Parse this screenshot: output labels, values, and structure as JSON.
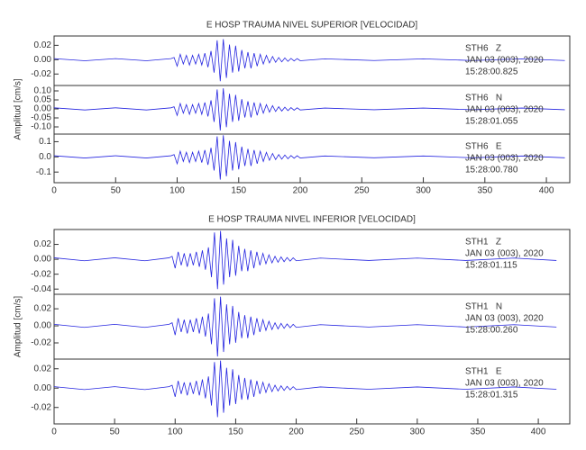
{
  "chart_data": [
    {
      "type": "line",
      "title": "E HOSP TRAUMA NIVEL SUPERIOR [VELOCIDAD]",
      "ylabel": "Amplitud [cm/s]",
      "xlim": [
        0,
        419
      ],
      "xticks": [
        0,
        50,
        100,
        150,
        200,
        250,
        300,
        350,
        400
      ],
      "x": [
        0,
        25,
        50,
        75,
        95,
        97.5,
        100,
        102.5,
        105,
        107.5,
        110,
        112.5,
        115,
        117.5,
        120,
        122.5,
        125,
        127.5,
        130,
        132.5,
        135,
        137.5,
        140,
        142.5,
        145,
        147.5,
        150,
        152.5,
        155,
        157.5,
        160,
        162.5,
        165,
        167.5,
        170,
        172.5,
        175,
        177.5,
        180,
        182.5,
        185,
        187.5,
        190,
        192.5,
        195,
        197.5,
        200,
        220,
        260,
        300,
        340,
        380,
        415
      ],
      "panels": [
        {
          "station": "STH6   Z",
          "date": "JAN 03 (003), 2020",
          "time": "15:28:00.825",
          "ylim": [
            -0.036,
            0.033
          ],
          "yticks": [
            0.02,
            {
              "value": 0,
              "label": "0.00"
            },
            -0.02
          ],
          "color": "#2424e0",
          "values": [
            0.0015,
            -0.0015,
            0.0015,
            -0.0015,
            0.0015,
            0.003,
            -0.009,
            0.0075,
            -0.006,
            0.006,
            -0.0075,
            0.006,
            -0.006,
            0.0075,
            -0.0075,
            0.009,
            -0.0105,
            0.012,
            -0.018,
            0.027,
            -0.03,
            0.0285,
            -0.0255,
            0.021,
            -0.018,
            0.0195,
            -0.0165,
            0.0135,
            -0.012,
            0.0105,
            -0.012,
            0.009,
            -0.009,
            0.0075,
            -0.006,
            0.006,
            -0.0045,
            0.0045,
            -0.0036,
            0.003,
            -0.003,
            0.0024,
            -0.0024,
            0.0018,
            -0.0018,
            0.0015,
            -0.0015,
            0.0012,
            -0.0012,
            0.0012,
            -0.0012,
            0.0012,
            -0.0012
          ]
        },
        {
          "station": "STH6   N",
          "date": "JAN 03 (003), 2020",
          "time": "15:28:01.055",
          "ylim": [
            -0.14,
            0.13
          ],
          "yticks": [
            {
              "value": 0.1,
              "label": "0.10"
            },
            0.05,
            {
              "value": 0,
              "label": "0.00"
            },
            -0.05,
            {
              "value": -0.1,
              "label": "-0.10"
            }
          ],
          "color": "#2424e0",
          "values": [
            0.006,
            -0.006,
            0.006,
            -0.006,
            0.006,
            0.012,
            -0.036,
            0.03,
            -0.024,
            0.024,
            -0.03,
            0.024,
            -0.024,
            0.03,
            -0.03,
            0.036,
            -0.042,
            0.048,
            -0.072,
            0.108,
            -0.12,
            0.114,
            -0.102,
            0.084,
            -0.072,
            0.078,
            -0.066,
            0.054,
            -0.048,
            0.042,
            -0.048,
            0.036,
            -0.036,
            0.03,
            -0.024,
            0.024,
            -0.018,
            0.018,
            -0.0144,
            0.012,
            -0.012,
            0.0096,
            -0.0096,
            0.0072,
            -0.0072,
            0.006,
            -0.006,
            0.0048,
            -0.0048,
            0.0048,
            -0.0048,
            0.0048,
            -0.0048
          ]
        },
        {
          "station": "STH6   E",
          "date": "JAN 03 (003), 2020",
          "time": "15:28:00.780",
          "ylim": [
            -0.17,
            0.15
          ],
          "yticks": [
            0.1,
            {
              "value": 0,
              "label": "0.0"
            },
            -0.1
          ],
          "color": "#2424e0",
          "values": [
            0.0075,
            -0.0075,
            0.0075,
            -0.0075,
            0.0075,
            0.015,
            -0.045,
            0.0375,
            -0.03,
            0.03,
            -0.0375,
            0.03,
            -0.03,
            0.0375,
            -0.0375,
            0.045,
            -0.0525,
            0.06,
            -0.09,
            0.135,
            -0.15,
            0.1425,
            -0.1275,
            0.105,
            -0.09,
            0.0975,
            -0.0825,
            0.0675,
            -0.06,
            0.0525,
            -0.06,
            0.045,
            -0.045,
            0.0375,
            -0.03,
            0.03,
            -0.0225,
            0.0225,
            -0.018,
            0.015,
            -0.015,
            0.012,
            -0.012,
            0.009,
            -0.009,
            0.0075,
            -0.0075,
            0.006,
            -0.006,
            0.006,
            -0.006,
            0.006,
            -0.006
          ]
        }
      ]
    },
    {
      "type": "line",
      "title": "E HOSP TRAUMA NIVEL INFERIOR [VELOCIDAD]",
      "ylabel": "Amplitud [cm/s]",
      "xlim": [
        0,
        426
      ],
      "xticks": [
        0,
        50,
        100,
        150,
        200,
        250,
        300,
        350,
        400
      ],
      "x": [
        0,
        25,
        50,
        75,
        95,
        97.5,
        100,
        102.5,
        105,
        107.5,
        110,
        112.5,
        115,
        117.5,
        120,
        122.5,
        125,
        127.5,
        130,
        132.5,
        135,
        137.5,
        140,
        142.5,
        145,
        147.5,
        150,
        152.5,
        155,
        157.5,
        160,
        162.5,
        165,
        167.5,
        170,
        172.5,
        175,
        177.5,
        180,
        182.5,
        185,
        187.5,
        190,
        192.5,
        195,
        197.5,
        200,
        220,
        260,
        300,
        340,
        380,
        415
      ],
      "panels": [
        {
          "station": "STH1   Z",
          "date": "JAN 03 (003), 2020",
          "time": "15:28:01.115",
          "ylim": [
            -0.047,
            0.04
          ],
          "yticks": [
            0.02,
            {
              "value": 0,
              "label": "0.00"
            },
            -0.02,
            -0.04
          ],
          "color": "#2424e0",
          "values": [
            0.002,
            -0.002,
            0.002,
            -0.002,
            0.002,
            0.004,
            -0.012,
            0.01,
            -0.008,
            0.008,
            -0.01,
            0.008,
            -0.008,
            0.01,
            -0.01,
            0.012,
            -0.014,
            0.016,
            -0.024,
            0.036,
            -0.04,
            0.038,
            -0.034,
            0.028,
            -0.024,
            0.026,
            -0.022,
            0.018,
            -0.016,
            0.014,
            -0.016,
            0.012,
            -0.012,
            0.01,
            -0.008,
            0.008,
            -0.006,
            0.006,
            -0.0048,
            0.004,
            -0.004,
            0.0032,
            -0.0032,
            0.0024,
            -0.0024,
            0.002,
            -0.002,
            0.0016,
            -0.0016,
            0.0016,
            -0.0016,
            0.0016,
            -0.0016
          ]
        },
        {
          "station": "STH1   N",
          "date": "JAN 03 (003), 2020",
          "time": "15:28:00.260",
          "ylim": [
            -0.039,
            0.037
          ],
          "yticks": [
            0.02,
            {
              "value": 0,
              "label": "0.00"
            },
            -0.02
          ],
          "color": "#2424e0",
          "values": [
            0.0018,
            -0.0018,
            0.0018,
            -0.0018,
            0.0018,
            0.0036,
            -0.0108,
            0.009,
            -0.0072,
            0.0072,
            -0.009,
            0.0072,
            -0.0072,
            0.009,
            -0.009,
            0.0108,
            -0.0126,
            0.0144,
            -0.0216,
            0.0324,
            -0.036,
            0.0342,
            -0.0306,
            0.0252,
            -0.0216,
            0.0234,
            -0.0198,
            0.0162,
            -0.0144,
            0.0126,
            -0.0144,
            0.0108,
            -0.0108,
            0.009,
            -0.0072,
            0.0072,
            -0.0054,
            0.0054,
            -0.0043,
            0.0036,
            -0.0036,
            0.0029,
            -0.0029,
            0.0022,
            -0.0022,
            0.0018,
            -0.0018,
            0.0014,
            -0.0014,
            0.0014,
            -0.0014,
            0.0014,
            -0.0014
          ]
        },
        {
          "station": "STH1   E",
          "date": "JAN 03 (003), 2020",
          "time": "15:28:01.315",
          "ylim": [
            -0.037,
            0.03
          ],
          "yticks": [
            0.02,
            {
              "value": 0,
              "label": "0.00"
            },
            -0.02
          ],
          "color": "#2424e0",
          "values": [
            0.0015,
            -0.0015,
            0.0015,
            -0.0015,
            0.0015,
            0.003,
            -0.009,
            0.0075,
            -0.006,
            0.006,
            -0.0075,
            0.006,
            -0.006,
            0.0075,
            -0.0075,
            0.009,
            -0.0105,
            0.012,
            -0.018,
            0.027,
            -0.03,
            0.0285,
            -0.0255,
            0.021,
            -0.018,
            0.0195,
            -0.0165,
            0.0135,
            -0.012,
            0.0105,
            -0.012,
            0.009,
            -0.009,
            0.0075,
            -0.006,
            0.006,
            -0.0045,
            0.0045,
            -0.0036,
            0.003,
            -0.003,
            0.0024,
            -0.0024,
            0.0018,
            -0.0018,
            0.0015,
            -0.0015,
            0.0012,
            -0.0012,
            0.0012,
            -0.0012,
            0.0012,
            -0.0012
          ]
        }
      ]
    }
  ]
}
